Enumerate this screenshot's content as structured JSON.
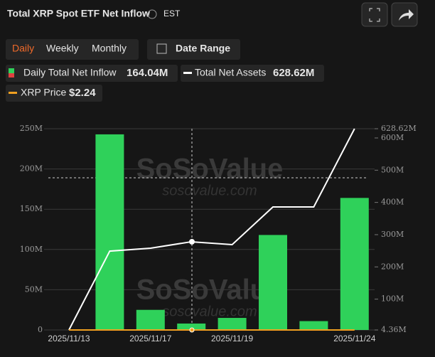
{
  "header": {
    "title": "Total XRP Spot ETF Net Inflow",
    "timezone": "EST"
  },
  "tabs": [
    "Daily",
    "Weekly",
    "Monthly"
  ],
  "date_button": "Date Range",
  "legend": [
    {
      "label": "Daily Total Net Inflow",
      "value": "164.04M"
    },
    {
      "label": "Total Net Assets",
      "value": "628.62M"
    },
    {
      "label": "XRP Price",
      "value": "$2.24"
    }
  ],
  "watermark": [
    "SoSoValue",
    "sosovalue.com"
  ],
  "chart_data": {
    "type": "bar",
    "categories": [
      "2025/11/13",
      null,
      "2025/11/17",
      null,
      "2025/11/19",
      null,
      null,
      "2025/11/24"
    ],
    "series": [
      {
        "name": "Daily Total Net Inflow",
        "color": "#2fd15a",
        "values": [
          null,
          243,
          25,
          8,
          15,
          118,
          11,
          164.04
        ]
      },
      {
        "name": "Total Net Assets",
        "color": "#ffffff",
        "axis": "y2",
        "type": "line",
        "values": [
          4.36,
          249,
          258,
          278,
          269,
          386,
          386,
          628.62
        ]
      }
    ],
    "ylim": [
      0,
      250
    ],
    "yticks": [
      0,
      {
        "value": 50,
        "label": "50M"
      },
      {
        "value": 100,
        "label": "100M"
      },
      {
        "value": 150,
        "label": "150M"
      },
      {
        "value": 200,
        "label": "200M"
      },
      {
        "value": 250,
        "label": "250M"
      }
    ],
    "y2lim": [
      4.36,
      628.62
    ],
    "y2ticks": [
      {
        "value": 4.36,
        "label": "4.36M"
      },
      {
        "value": 100,
        "label": "100M"
      },
      {
        "value": 200,
        "label": "200M"
      },
      {
        "value": 300,
        "label": "300M"
      },
      {
        "value": 400,
        "label": "400M"
      },
      {
        "value": 500,
        "label": "500M"
      },
      {
        "value": 600,
        "label": "600M"
      },
      {
        "value": 628.62,
        "label": "628.62M"
      }
    ],
    "grid": true
  }
}
